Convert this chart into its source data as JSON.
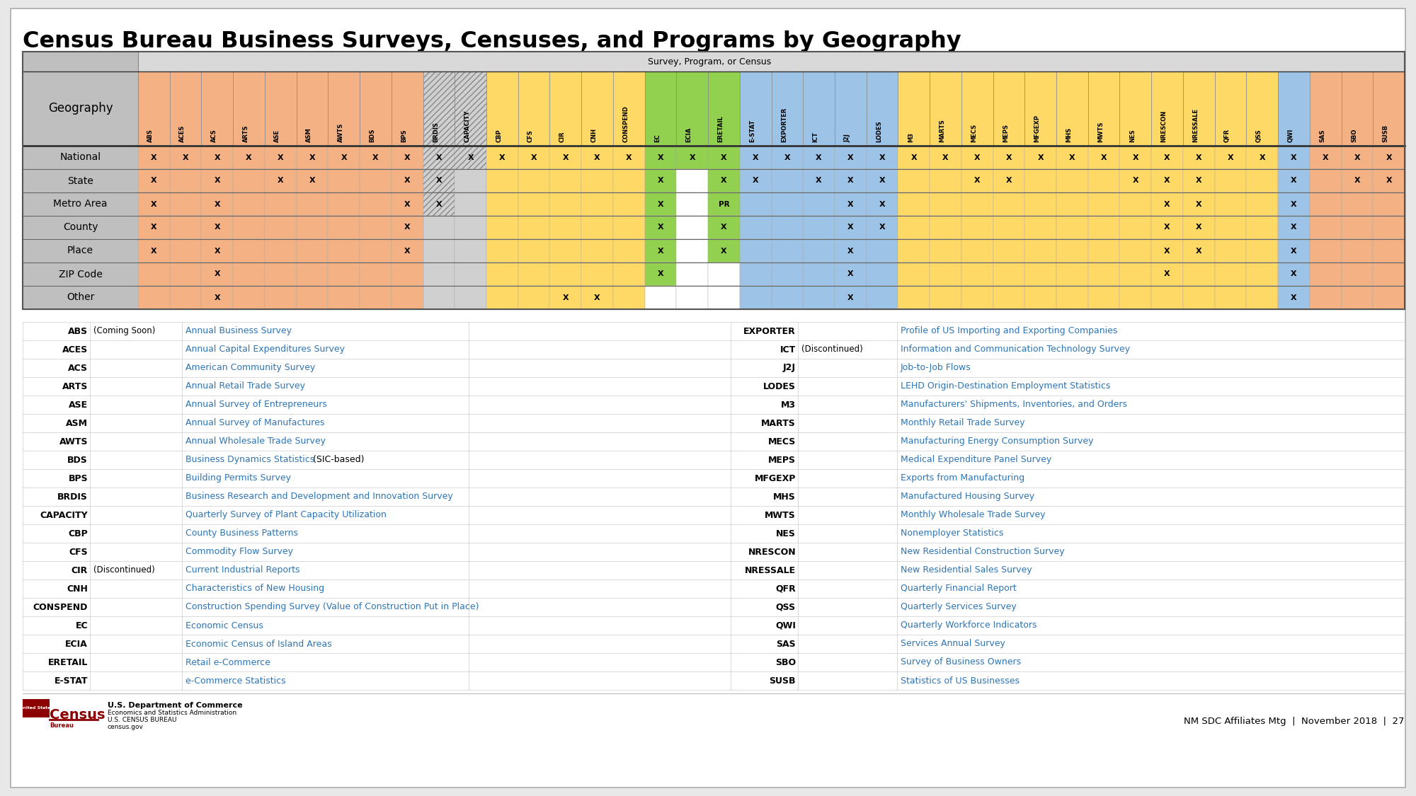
{
  "title": "Census Bureau Business Surveys, Censuses, and Programs by Geography",
  "subtitle": "Survey, Program, or Census",
  "col_header": "Geography",
  "columns": [
    "ABS",
    "ACES",
    "ACS",
    "ARTS",
    "ASE",
    "ASM",
    "AWTS",
    "BDS",
    "BPS",
    "BRDIS",
    "CAPACITY",
    "CBP",
    "CFS",
    "CIR",
    "CNH",
    "CONSPEND",
    "EC",
    "ECIA",
    "ERETAIL",
    "E-STAT",
    "EXPORTER",
    "ICT",
    "J2J",
    "LODES",
    "M3",
    "MARTS",
    "MECS",
    "MEPS",
    "MFGEXP",
    "MHS",
    "MWTS",
    "NES",
    "NRESCON",
    "NRESSALE",
    "QFR",
    "QSS",
    "QWI",
    "SAS",
    "SBO",
    "SUSB"
  ],
  "rows": [
    "National",
    "State",
    "Metro Area",
    "County",
    "Place",
    "ZIP Code",
    "Other"
  ],
  "marks": {
    "National": [
      "ABS",
      "ACES",
      "ACS",
      "ARTS",
      "ASE",
      "ASM",
      "AWTS",
      "BDS",
      "BPS",
      "BRDIS",
      "CAPACITY",
      "CBP",
      "CFS",
      "CIR",
      "CNH",
      "CONSPEND",
      "EC",
      "ECIA",
      "ERETAIL",
      "E-STAT",
      "EXPORTER",
      "ICT",
      "J2J",
      "LODES",
      "M3",
      "MARTS",
      "MECS",
      "MEPS",
      "MFGEXP",
      "MHS",
      "MWTS",
      "NES",
      "NRESCON",
      "NRESSALE",
      "QFR",
      "QSS",
      "QWI",
      "SAS",
      "SBO",
      "SUSB"
    ],
    "State": [
      "ABS",
      "ACS",
      "ASE",
      "ASM",
      "BPS",
      "BRDIS",
      "EC",
      "ERETAIL",
      "E-STAT",
      "ICT",
      "J2J",
      "LODES",
      "MECS",
      "MEPS",
      "NES",
      "NRESCON",
      "NRESSALE",
      "QWI",
      "SBO",
      "SUSB"
    ],
    "Metro Area": [
      "ABS",
      "ACS",
      "BPS",
      "BRDIS",
      "EC",
      "ERETAIL",
      "J2J",
      "LODES",
      "NRESCON",
      "NRESSALE",
      "QWI"
    ],
    "County": [
      "ABS",
      "ACS",
      "BPS",
      "EC",
      "ERETAIL",
      "J2J",
      "LODES",
      "NRESCON",
      "NRESSALE",
      "QWI"
    ],
    "Place": [
      "ABS",
      "ACS",
      "BPS",
      "EC",
      "ERETAIL",
      "J2J",
      "NRESCON",
      "NRESSALE",
      "QWI"
    ],
    "ZIP Code": [
      "ACS",
      "EC",
      "J2J",
      "NRESCON",
      "QWI"
    ],
    "Other": [
      "ACS",
      "CIR",
      "CNH",
      "J2J",
      "QWI"
    ]
  },
  "special_marks": {
    "Metro Area": {
      "ERETAIL": "PR"
    }
  },
  "col_colors": {
    "ABS": "#f4b183",
    "ACES": "#f4b183",
    "ACS": "#f4b183",
    "ARTS": "#f4b183",
    "ASE": "#f4b183",
    "ASM": "#f4b183",
    "AWTS": "#f4b183",
    "BDS": "#f4b183",
    "BPS": "#f4b183",
    "BRDIS": "#92d050",
    "CAPACITY": "#ffd966",
    "CBP": "#ffd966",
    "CFS": "#ffd966",
    "CIR": "#ffd966",
    "CNH": "#ffd966",
    "CONSPEND": "#ffd966",
    "EC": "#92d050",
    "ECIA": "#92d050",
    "ERETAIL": "#92d050",
    "E-STAT": "#9dc3e6",
    "EXPORTER": "#9dc3e6",
    "ICT": "#9dc3e6",
    "J2J": "#9dc3e6",
    "LODES": "#9dc3e6",
    "M3": "#ffd966",
    "MARTS": "#ffd966",
    "MECS": "#ffd966",
    "MEPS": "#ffd966",
    "MFGEXP": "#ffd966",
    "MHS": "#ffd966",
    "MWTS": "#ffd966",
    "NES": "#ffd966",
    "NRESCON": "#ffd966",
    "NRESSALE": "#ffd966",
    "QFR": "#ffd966",
    "QSS": "#ffd966",
    "QWI": "#9dc3e6",
    "SAS": "#f4b183",
    "SBO": "#f4b183",
    "SUSB": "#f4b183"
  },
  "col_empty_colors": {
    "ABS": "#f4b183",
    "ACES": "#f4b183",
    "ACS": "#f4b183",
    "ARTS": "#f4b183",
    "ASE": "#f4b183",
    "ASM": "#f4b183",
    "AWTS": "#f4b183",
    "BDS": "#f4b183",
    "BPS": "#f4b183",
    "BRDIS": "#ffffff",
    "CAPACITY": "#ffd966",
    "CBP": "#ffd966",
    "CFS": "#ffd966",
    "CIR": "#ffd966",
    "CNH": "#ffd966",
    "CONSPEND": "#ffd966",
    "EC": "#ffffff",
    "ECIA": "#ffffff",
    "ERETAIL": "#ffffff",
    "E-STAT": "#9dc3e6",
    "EXPORTER": "#9dc3e6",
    "ICT": "#9dc3e6",
    "J2J": "#9dc3e6",
    "LODES": "#9dc3e6",
    "M3": "#ffd966",
    "MARTS": "#ffd966",
    "MECS": "#ffd966",
    "MEPS": "#ffd966",
    "MFGEXP": "#ffd966",
    "MHS": "#ffd966",
    "MWTS": "#ffd966",
    "NES": "#ffd966",
    "NRESCON": "#ffd966",
    "NRESSALE": "#ffd966",
    "QFR": "#ffd966",
    "QSS": "#ffd966",
    "QWI": "#9dc3e6",
    "SAS": "#f4b183",
    "SBO": "#f4b183",
    "SUSB": "#f4b183"
  },
  "hatched_cols": [
    "BRDIS",
    "CAPACITY"
  ],
  "legend_entries": [
    {
      "label": "ABS",
      "note": "(Coming Soon)",
      "link": "Annual Business Survey",
      "extra": ""
    },
    {
      "label": "ACES",
      "note": "",
      "link": "Annual Capital Expenditures Survey",
      "extra": ""
    },
    {
      "label": "ACS",
      "note": "",
      "link": "American Community Survey",
      "extra": ""
    },
    {
      "label": "ARTS",
      "note": "",
      "link": "Annual Retail Trade Survey",
      "extra": ""
    },
    {
      "label": "ASE",
      "note": "",
      "link": "Annual Survey of Entrepreneurs",
      "extra": ""
    },
    {
      "label": "ASM",
      "note": "",
      "link": "Annual Survey of Manufactures",
      "extra": ""
    },
    {
      "label": "AWTS",
      "note": "",
      "link": "Annual Wholesale Trade Survey",
      "extra": ""
    },
    {
      "label": "BDS",
      "note": "",
      "link": "Business Dynamics Statistics",
      "extra": "(SIC-based)"
    },
    {
      "label": "BPS",
      "note": "",
      "link": "Building Permits Survey",
      "extra": ""
    },
    {
      "label": "BRDIS",
      "note": "",
      "link": "Business Research and Development and Innovation Survey",
      "extra": ""
    },
    {
      "label": "CAPACITY",
      "note": "",
      "link": "Quarterly Survey of Plant Capacity Utilization",
      "extra": ""
    },
    {
      "label": "CBP",
      "note": "",
      "link": "County Business Patterns",
      "extra": ""
    },
    {
      "label": "CFS",
      "note": "",
      "link": "Commodity Flow Survey",
      "extra": ""
    },
    {
      "label": "CIR",
      "note": "(Discontinued)",
      "link": "Current Industrial Reports",
      "extra": ""
    },
    {
      "label": "CNH",
      "note": "",
      "link": "Characteristics of New Housing",
      "extra": ""
    },
    {
      "label": "CONSPEND",
      "note": "",
      "link": "Construction Spending Survey (Value of Construction Put in Place)",
      "extra": ""
    },
    {
      "label": "EC",
      "note": "",
      "link": "Economic Census",
      "extra": ""
    },
    {
      "label": "ECIA",
      "note": "",
      "link": "Economic Census of Island Areas",
      "extra": ""
    },
    {
      "label": "ERETAIL",
      "note": "",
      "link": "Retail e-Commerce",
      "extra": ""
    },
    {
      "label": "E-STAT",
      "note": "",
      "link": "e-Commerce Statistics",
      "extra": ""
    }
  ],
  "legend_entries2": [
    {
      "label": "EXPORTER",
      "note": "",
      "link": "Profile of US Importing and Exporting Companies"
    },
    {
      "label": "ICT",
      "note": "(Discontinued)",
      "link": "Information and Communication Technology Survey"
    },
    {
      "label": "J2J",
      "note": "",
      "link": "Job-to-Job Flows"
    },
    {
      "label": "LODES",
      "note": "",
      "link": "LEHD Origin-Destination Employment Statistics"
    },
    {
      "label": "M3",
      "note": "",
      "link": "Manufacturers' Shipments, Inventories, and Orders"
    },
    {
      "label": "MARTS",
      "note": "",
      "link": "Monthly Retail Trade Survey"
    },
    {
      "label": "MECS",
      "note": "",
      "link": "Manufacturing Energy Consumption Survey"
    },
    {
      "label": "MEPS",
      "note": "",
      "link": "Medical Expenditure Panel Survey"
    },
    {
      "label": "MFGEXP",
      "note": "",
      "link": "Exports from Manufacturing"
    },
    {
      "label": "MHS",
      "note": "",
      "link": "Manufactured Housing Survey"
    },
    {
      "label": "MWTS",
      "note": "",
      "link": "Monthly Wholesale Trade Survey"
    },
    {
      "label": "NES",
      "note": "",
      "link": "Nonemployer Statistics"
    },
    {
      "label": "NRESCON",
      "note": "",
      "link": "New Residential Construction Survey"
    },
    {
      "label": "NRESSALE",
      "note": "",
      "link": "New Residential Sales Survey"
    },
    {
      "label": "QFR",
      "note": "",
      "link": "Quarterly Financial Report"
    },
    {
      "label": "QSS",
      "note": "",
      "link": "Quarterly Services Survey"
    },
    {
      "label": "QWI",
      "note": "",
      "link": "Quarterly Workforce Indicators"
    },
    {
      "label": "SAS",
      "note": "",
      "link": "Services Annual Survey"
    },
    {
      "label": "SBO",
      "note": "",
      "link": "Survey of Business Owners"
    },
    {
      "label": "SUSB",
      "note": "",
      "link": "Statistics of US Businesses"
    }
  ],
  "footer_text": "NM SDC Affiliates Mtg  |  November 2018  |  27"
}
